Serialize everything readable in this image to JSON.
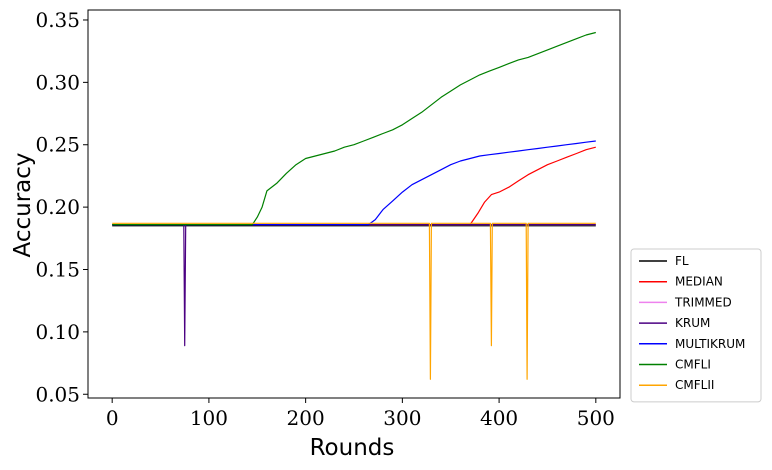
{
  "chart_data": {
    "type": "line",
    "xlabel": "Rounds",
    "ylabel": "Accuracy",
    "xlim": [
      -25,
      525
    ],
    "ylim": [
      0.047,
      0.358
    ],
    "xticks": [
      0,
      100,
      200,
      300,
      400,
      500
    ],
    "yticks": [
      0.05,
      0.1,
      0.15,
      0.2,
      0.25,
      0.3,
      0.35
    ],
    "xtick_labels": [
      "0",
      "100",
      "200",
      "300",
      "400",
      "500"
    ],
    "ytick_labels": [
      "0.05",
      "0.10",
      "0.15",
      "0.20",
      "0.25",
      "0.30",
      "0.35"
    ],
    "grid": false,
    "legend_position": "lower-right outside",
    "series": [
      {
        "name": "FL",
        "color": "#000000",
        "points": [
          [
            0,
            0.185
          ],
          [
            500,
            0.185
          ]
        ]
      },
      {
        "name": "MEDIAN",
        "color": "#ff0000",
        "points": [
          [
            0,
            0.186
          ],
          [
            370,
            0.186
          ],
          [
            378,
            0.195
          ],
          [
            385,
            0.204
          ],
          [
            392,
            0.21
          ],
          [
            400,
            0.212
          ],
          [
            410,
            0.216
          ],
          [
            420,
            0.221
          ],
          [
            430,
            0.226
          ],
          [
            440,
            0.23
          ],
          [
            450,
            0.234
          ],
          [
            460,
            0.237
          ],
          [
            470,
            0.24
          ],
          [
            480,
            0.243
          ],
          [
            490,
            0.246
          ],
          [
            500,
            0.248
          ]
        ]
      },
      {
        "name": "TRIMMED",
        "color": "#ee82ee",
        "points": [
          [
            0,
            0.186
          ],
          [
            500,
            0.186
          ]
        ]
      },
      {
        "name": "KRUM",
        "color": "#4b0082",
        "points": [
          [
            0,
            0.186
          ],
          [
            74,
            0.186
          ],
          [
            75,
            0.089
          ],
          [
            76,
            0.186
          ],
          [
            500,
            0.186
          ]
        ]
      },
      {
        "name": "MULTIKRUM",
        "color": "#0000ff",
        "points": [
          [
            0,
            0.186
          ],
          [
            265,
            0.186
          ],
          [
            272,
            0.19
          ],
          [
            280,
            0.198
          ],
          [
            290,
            0.205
          ],
          [
            300,
            0.212
          ],
          [
            310,
            0.218
          ],
          [
            320,
            0.222
          ],
          [
            330,
            0.226
          ],
          [
            340,
            0.23
          ],
          [
            350,
            0.234
          ],
          [
            360,
            0.237
          ],
          [
            370,
            0.239
          ],
          [
            380,
            0.241
          ],
          [
            390,
            0.242
          ],
          [
            400,
            0.243
          ],
          [
            410,
            0.244
          ],
          [
            420,
            0.245
          ],
          [
            430,
            0.246
          ],
          [
            440,
            0.247
          ],
          [
            450,
            0.248
          ],
          [
            460,
            0.249
          ],
          [
            470,
            0.25
          ],
          [
            480,
            0.251
          ],
          [
            490,
            0.252
          ],
          [
            500,
            0.253
          ]
        ]
      },
      {
        "name": "CMFLI",
        "color": "#008000",
        "points": [
          [
            0,
            0.186
          ],
          [
            145,
            0.186
          ],
          [
            150,
            0.192
          ],
          [
            155,
            0.2
          ],
          [
            160,
            0.213
          ],
          [
            170,
            0.219
          ],
          [
            180,
            0.227
          ],
          [
            190,
            0.234
          ],
          [
            200,
            0.239
          ],
          [
            210,
            0.241
          ],
          [
            220,
            0.243
          ],
          [
            230,
            0.245
          ],
          [
            240,
            0.248
          ],
          [
            250,
            0.25
          ],
          [
            260,
            0.253
          ],
          [
            270,
            0.256
          ],
          [
            280,
            0.259
          ],
          [
            290,
            0.262
          ],
          [
            300,
            0.266
          ],
          [
            310,
            0.271
          ],
          [
            320,
            0.276
          ],
          [
            330,
            0.282
          ],
          [
            340,
            0.288
          ],
          [
            350,
            0.293
          ],
          [
            360,
            0.298
          ],
          [
            370,
            0.302
          ],
          [
            380,
            0.306
          ],
          [
            390,
            0.309
          ],
          [
            400,
            0.312
          ],
          [
            410,
            0.315
          ],
          [
            420,
            0.318
          ],
          [
            430,
            0.32
          ],
          [
            440,
            0.323
          ],
          [
            450,
            0.326
          ],
          [
            460,
            0.329
          ],
          [
            470,
            0.332
          ],
          [
            480,
            0.335
          ],
          [
            490,
            0.338
          ],
          [
            500,
            0.34
          ]
        ]
      },
      {
        "name": "CMFLII",
        "color": "#ffa500",
        "points": [
          [
            0,
            0.187
          ],
          [
            328,
            0.187
          ],
          [
            329,
            0.062
          ],
          [
            330,
            0.187
          ],
          [
            391,
            0.187
          ],
          [
            392,
            0.089
          ],
          [
            393,
            0.187
          ],
          [
            428,
            0.187
          ],
          [
            429,
            0.062
          ],
          [
            430,
            0.187
          ],
          [
            500,
            0.187
          ]
        ]
      }
    ]
  }
}
